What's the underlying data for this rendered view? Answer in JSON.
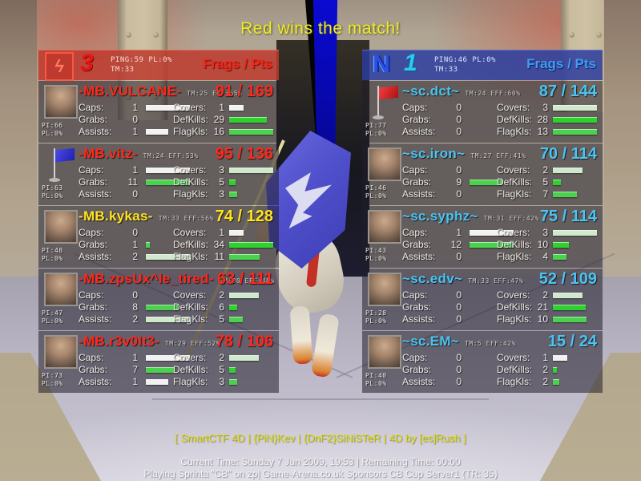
{
  "title": "Red wins the match!",
  "palette": {
    "red_accent": "#ff281c",
    "blue_accent": "#4ac4f2",
    "highlight_yellow": "#ffe41c",
    "title_yellow": "#eded28",
    "footer_yellow": "#dcdc12",
    "bar_white": "#f2f2f2",
    "bar_pale_green": "#cfe9cc",
    "bar_green": "#2ed22e",
    "bar_light_green": "#4ad24e"
  },
  "stat_labels": {
    "caps": "Caps:",
    "grabs": "Grabs:",
    "assists": "Assists:",
    "covers": "Covers:",
    "defkills": "DefKills:",
    "flagkls": "FlagKls:"
  },
  "teams": [
    {
      "id": "red",
      "name": "Red Team",
      "score": "3",
      "ping": "PING:59 PL:0%",
      "tm": "TM:33",
      "frags_label": "Frags / Pts",
      "players": [
        {
          "name": "-MB.VULCANE-",
          "tm": "TM:25",
          "eff": "EFF:65%",
          "score": "91 / 169",
          "pi": "PI:66",
          "pl": "PL:0%",
          "icon": "portrait",
          "highlight": false,
          "caps": 1,
          "grabs": 0,
          "assists": 1,
          "covers": 1,
          "defkills": 29,
          "flagkls": 16
        },
        {
          "name": "-MB.vitz-",
          "tm": "TM:24",
          "eff": "EFF:53%",
          "score": "95 / 136",
          "pi": "PI:63",
          "pl": "PL:0%",
          "icon": "blue-flag",
          "highlight": false,
          "caps": 1,
          "grabs": 11,
          "assists": 0,
          "covers": 3,
          "defkills": 5,
          "flagkls": 3
        },
        {
          "name": "-MB.kykas-",
          "tm": "TM:33",
          "eff": "EFF:56%",
          "score": "74 / 128",
          "pi": "PI:48",
          "pl": "PL:0%",
          "icon": "portrait",
          "highlight": true,
          "caps": 0,
          "grabs": 1,
          "assists": 2,
          "covers": 1,
          "defkills": 34,
          "flagkls": 11
        },
        {
          "name": "-MB.zpsUx^le_tired-",
          "tm": "TM:30",
          "eff": "EFF:40%",
          "score": "63 / 111",
          "pi": "PI:47",
          "pl": "PL:0%",
          "icon": "portrait",
          "highlight": false,
          "caps": 0,
          "grabs": 8,
          "assists": 2,
          "covers": 2,
          "defkills": 6,
          "flagkls": 5
        },
        {
          "name": "-MB.r3v0lt3-",
          "tm": "TM:29",
          "eff": "EFF:52%",
          "score": "78 / 106",
          "pi": "PI:73",
          "pl": "PL:0%",
          "icon": "portrait",
          "highlight": false,
          "caps": 1,
          "grabs": 7,
          "assists": 1,
          "covers": 2,
          "defkills": 5,
          "flagkls": 3
        }
      ]
    },
    {
      "id": "blue",
      "name": "Blue Team",
      "score": "1",
      "ping": "PING:46 PL:0%",
      "tm": "TM:33",
      "frags_label": "Frags / Pts",
      "players": [
        {
          "name": "~sc.dct~",
          "tm": "TM:24",
          "eff": "EFF:60%",
          "score": "87 / 144",
          "pi": "PI:77",
          "pl": "PL:0%",
          "icon": "red-flag",
          "highlight": false,
          "caps": 0,
          "grabs": 0,
          "assists": 0,
          "covers": 3,
          "defkills": 28,
          "flagkls": 13
        },
        {
          "name": "~sc.iron~",
          "tm": "TM:27",
          "eff": "EFF:41%",
          "score": "70 / 114",
          "pi": "PI:46",
          "pl": "PL:0%",
          "icon": "portrait",
          "highlight": false,
          "caps": 0,
          "grabs": 9,
          "assists": 0,
          "covers": 2,
          "defkills": 5,
          "flagkls": 7
        },
        {
          "name": "~sc.syphz~",
          "tm": "TM:31",
          "eff": "EFF:42%",
          "score": "75 / 114",
          "pi": "PI:43",
          "pl": "PL:0%",
          "icon": "portrait",
          "highlight": false,
          "caps": 1,
          "grabs": 12,
          "assists": 0,
          "covers": 3,
          "defkills": 10,
          "flagkls": 4
        },
        {
          "name": "~sc.edv~",
          "tm": "TM:33",
          "eff": "EFF:47%",
          "score": "52 / 109",
          "pi": "PI:28",
          "pl": "PL:0%",
          "icon": "portrait",
          "highlight": false,
          "caps": 0,
          "grabs": 0,
          "assists": 0,
          "covers": 2,
          "defkills": 21,
          "flagkls": 10
        },
        {
          "name": "~sc.EM~",
          "tm": "TM:5",
          "eff": "EFF:42%",
          "score": "15 / 24",
          "pi": "PI:40",
          "pl": "PL:0%",
          "icon": "portrait",
          "highlight": false,
          "caps": 0,
          "grabs": 0,
          "assists": 0,
          "covers": 1,
          "defkills": 2,
          "flagkls": 2
        }
      ]
    }
  ],
  "footer": {
    "credits": "[ SmartCTF 4D | {PiN}Kev | {DnF2}SiNiSTeR | 4D by [es]Rush ]",
    "time_line": "Current Time: Sunday 7 Jun 2009, 19:53 | Remaining Time: 00:00",
    "server_line": "Playing Sprinta \"CB\" on zp| Game-Arena.co.uk Sponsors CB Cup Server1 (TR: 35)"
  }
}
